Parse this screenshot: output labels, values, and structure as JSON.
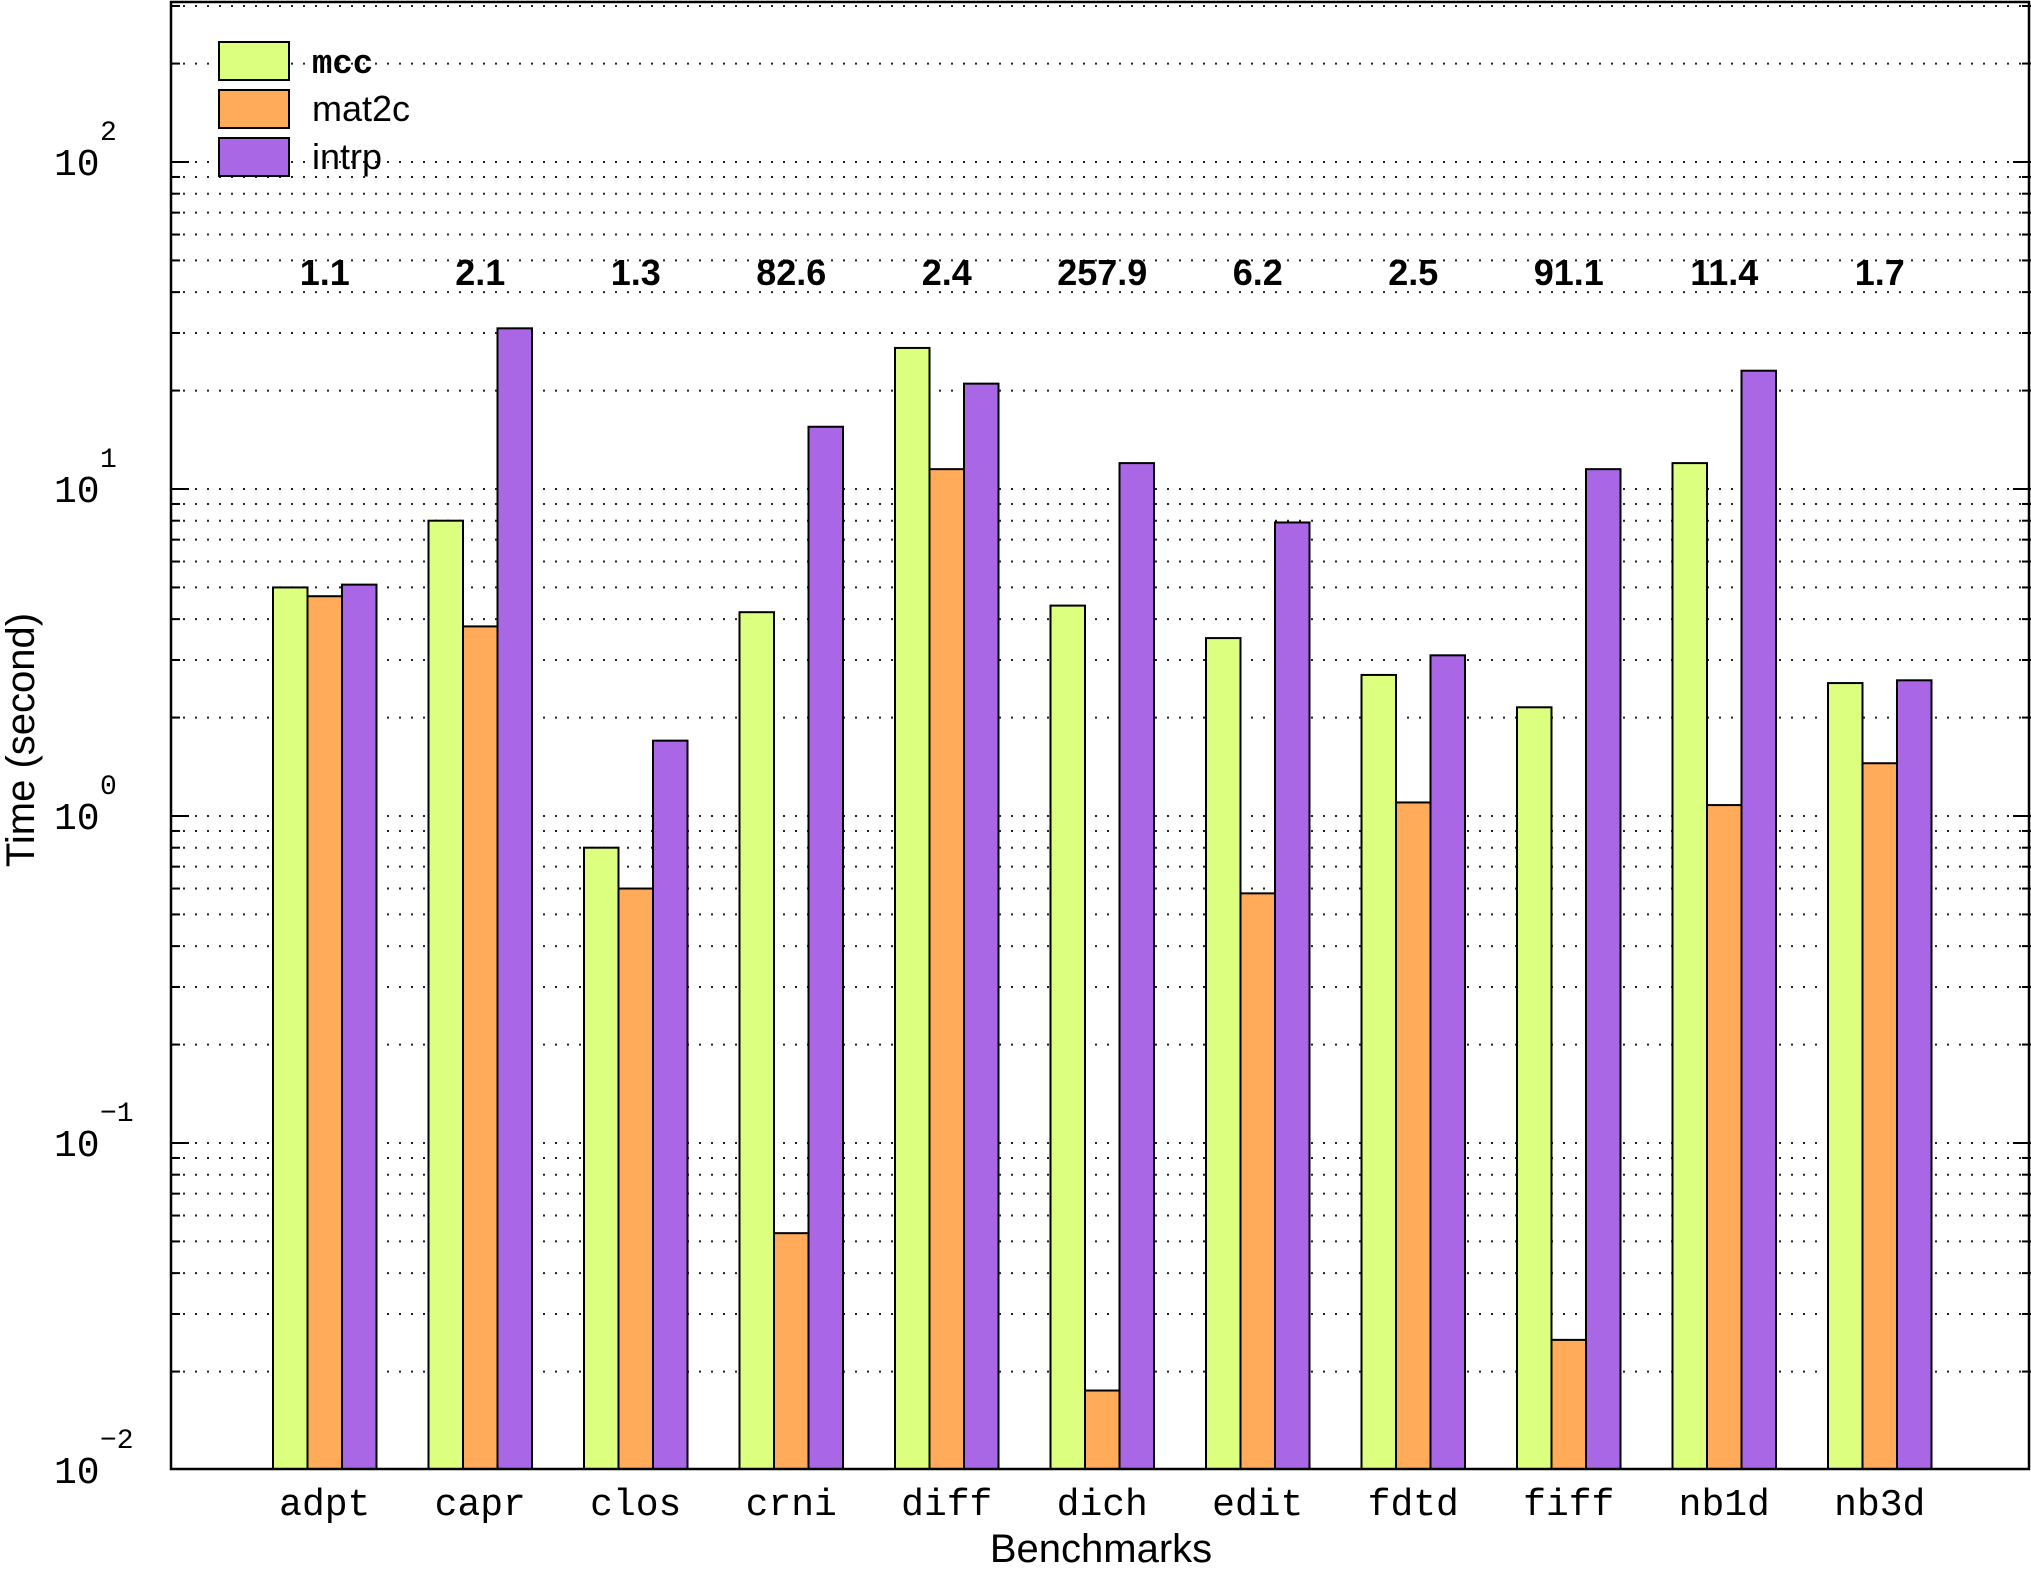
{
  "chart_data": {
    "type": "bar",
    "scale": "log",
    "xlabel": "Benchmarks",
    "ylabel": "Time (second)",
    "ylim": [
      0.01,
      300
    ],
    "yticks": [
      {
        "value": 0.01,
        "base": "10",
        "exp": "−2"
      },
      {
        "value": 0.1,
        "base": "10",
        "exp": "−1"
      },
      {
        "value": 1,
        "base": "10",
        "exp": "0"
      },
      {
        "value": 10,
        "base": "10",
        "exp": "1"
      },
      {
        "value": 100,
        "base": "10",
        "exp": "2"
      }
    ],
    "grid": true,
    "legend_position": "top-left",
    "categories": [
      "adpt",
      "capr",
      "clos",
      "crni",
      "diff",
      "dich",
      "edit",
      "fdtd",
      "fiff",
      "nb1d",
      "nb3d"
    ],
    "series": [
      {
        "name": "mcc",
        "color": "#ddff80",
        "values": [
          5.0,
          8.0,
          0.8,
          4.2,
          27,
          4.4,
          3.5,
          2.7,
          2.15,
          12.0,
          2.55
        ]
      },
      {
        "name": "mat2c",
        "color": "#ffab59",
        "values": [
          4.7,
          3.8,
          0.6,
          0.053,
          11.5,
          0.0175,
          0.58,
          1.1,
          0.025,
          1.08,
          1.45
        ]
      },
      {
        "name": "intrp",
        "color": "#a967e6",
        "values": [
          5.1,
          31,
          1.7,
          15.5,
          21,
          12.0,
          7.9,
          3.1,
          11.5,
          23,
          2.6
        ]
      }
    ],
    "annotations": [
      "1.1",
      "2.1",
      "1.3",
      "82.6",
      "2.4",
      "257.9",
      "6.2",
      "2.5",
      "91.1",
      "11.4",
      "1.7"
    ]
  }
}
